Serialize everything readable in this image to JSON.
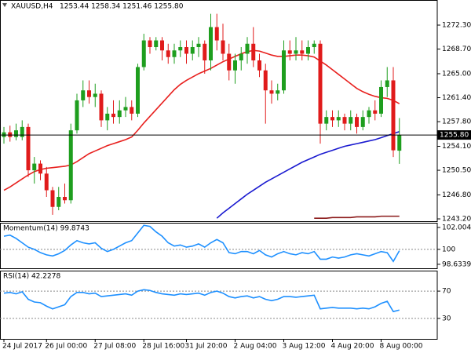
{
  "chart_data": [
    {
      "type": "candlestick",
      "title": "XAUUSD,H4",
      "subtitle": "1253.44 1258.34 1251.46 1255.80",
      "categories": [
        "24 Jul 2017",
        null,
        null,
        null,
        null,
        null,
        null,
        "26 Jul 00:00",
        null,
        null,
        null,
        null,
        null,
        null,
        null,
        "27 Jul 08:00",
        null,
        null,
        null,
        null,
        null,
        null,
        null,
        "28 Jul 16:00",
        null,
        null,
        null,
        null,
        null,
        null,
        "31 Jul 20:00",
        null,
        null,
        null,
        null,
        null,
        null,
        null,
        "2 Aug 04:00",
        null,
        null,
        null,
        null,
        null,
        null,
        null,
        "3 Aug 12:00",
        null,
        null,
        null,
        null,
        null,
        null,
        null,
        "4 Aug 20:00",
        null,
        null,
        null,
        null,
        null,
        null,
        null,
        "8 Aug 00:00",
        null,
        null,
        null
      ],
      "open": [
        1255.5,
        1256.2,
        1255.5,
        1255.5,
        1257,
        1250.5,
        1251.5,
        1250,
        1247.5,
        1245,
        1246.5,
        1246,
        1256.5,
        1261,
        1262.5,
        1261.5,
        1262,
        1258,
        1259,
        1258.5,
        1259.5,
        1260,
        1259,
        1266,
        1270,
        1269,
        1270,
        1268.5,
        1267.5,
        1268.5,
        1269,
        1268,
        1269,
        1269.5,
        1267,
        1272,
        1270,
        1268,
        1265.5,
        1267,
        1268,
        1269.5,
        1267,
        1265.5,
        1262.5,
        1262,
        1262.5,
        1268.5,
        1268,
        1268.5,
        1268,
        1269,
        1269.5,
        1257.5,
        1258.5,
        1258,
        1258.5,
        1257.5,
        1258.5,
        1257,
        1258.5,
        1259.5,
        1259,
        1263,
        1264,
        1253.44
      ],
      "high": [
        1257,
        1257.2,
        1257.5,
        1258,
        1257.5,
        1252.5,
        1252,
        1251,
        1248,
        1248,
        1248.5,
        1257.5,
        1262,
        1264,
        1264,
        1263.5,
        1262.5,
        1260,
        1261,
        1261,
        1261.5,
        1261,
        1266.5,
        1271,
        1270.5,
        1270.5,
        1270.5,
        1269.5,
        1269.5,
        1270,
        1270,
        1270,
        1270.5,
        1270,
        1274,
        1274,
        1272.5,
        1269.5,
        1268,
        1269,
        1270.5,
        1272,
        1268,
        1266.5,
        1264,
        1263.5,
        1270,
        1270,
        1270.5,
        1270,
        1270,
        1270,
        1270,
        1259.5,
        1259.5,
        1259.5,
        1259,
        1259.5,
        1259,
        1259.5,
        1260,
        1261,
        1264,
        1266,
        1266,
        1258.34
      ],
      "low": [
        1254.5,
        1254.8,
        1255,
        1255,
        1249.5,
        1248.5,
        1249,
        1246.5,
        1243.8,
        1244.5,
        1245.5,
        1245.5,
        1256,
        1260,
        1260.5,
        1260,
        1257,
        1256.5,
        1257.5,
        1257.5,
        1258.5,
        1258,
        1258.5,
        1265.5,
        1268,
        1268.5,
        1267,
        1266.5,
        1266.5,
        1267.5,
        1266.5,
        1267,
        1267.5,
        1265,
        1265.5,
        1268.5,
        1267,
        1264,
        1263.5,
        1265.5,
        1266.5,
        1266,
        1264.5,
        1257.5,
        1260.5,
        1261,
        1262,
        1267,
        1267,
        1267,
        1267,
        1268,
        1254.5,
        1256.5,
        1257,
        1257,
        1256.5,
        1256.5,
        1256,
        1256.5,
        1257.5,
        1258,
        1258.5,
        1261.5,
        1252.5,
        1251.46
      ],
      "close": [
        1256.2,
        1255.5,
        1256.5,
        1257,
        1250.5,
        1251.5,
        1250,
        1247.5,
        1245,
        1246.5,
        1246,
        1256.5,
        1261,
        1262.5,
        1261.5,
        1262,
        1258,
        1259,
        1258.5,
        1259.5,
        1260,
        1259,
        1266,
        1270,
        1269,
        1270,
        1268.5,
        1267.5,
        1268.5,
        1269,
        1268,
        1269,
        1269.5,
        1267,
        1272,
        1270,
        1268,
        1265.5,
        1267,
        1268,
        1269.5,
        1267,
        1265.5,
        1262.5,
        1262,
        1262.5,
        1268.5,
        1268,
        1268.5,
        1268,
        1269,
        1269.5,
        1257.5,
        1258.5,
        1258,
        1258.5,
        1257.5,
        1258.5,
        1257,
        1258.5,
        1259.5,
        1259,
        1263,
        1264,
        1253.5,
        1255.8
      ],
      "up_color": "#1e9e1e",
      "down_color": "#e01b1b",
      "series": [
        {
          "color": "#e8201e",
          "values": [
            1247.5,
            1248.0,
            1248.6,
            1249.2,
            1249.8,
            1250.3,
            1250.6,
            1250.8,
            1250.9,
            1251.0,
            1251.1,
            1251.3,
            1251.8,
            1252.4,
            1253.0,
            1253.4,
            1253.8,
            1254.2,
            1254.5,
            1254.8,
            1255.1,
            1255.5,
            1256.5,
            1257.6,
            1258.6,
            1259.6,
            1260.6,
            1261.6,
            1262.6,
            1263.4,
            1264.0,
            1264.5,
            1265.0,
            1265.4,
            1265.8,
            1266.3,
            1266.8,
            1267.2,
            1267.6,
            1268.0,
            1268.3,
            1268.5,
            1268.4,
            1268.1,
            1267.8,
            1267.6,
            1267.6,
            1267.7,
            1267.8,
            1267.8,
            1267.7,
            1267.5,
            1266.9,
            1266.3,
            1265.6,
            1264.9,
            1264.2,
            1263.5,
            1262.8,
            1262.3,
            1261.9,
            1261.6,
            1261.4,
            1261.3,
            1261.0,
            1260.5
          ]
        },
        {
          "color": "#1a1ad0",
          "values": [
            null,
            null,
            null,
            null,
            null,
            null,
            null,
            null,
            null,
            null,
            null,
            null,
            null,
            null,
            null,
            null,
            null,
            null,
            null,
            null,
            null,
            null,
            null,
            null,
            null,
            null,
            null,
            null,
            null,
            null,
            null,
            null,
            null,
            null,
            null,
            1243.3,
            1244.1,
            1244.8,
            1245.5,
            1246.2,
            1246.9,
            1247.5,
            1248.1,
            1248.7,
            1249.2,
            1249.7,
            1250.2,
            1250.7,
            1251.2,
            1251.7,
            1252.1,
            1252.5,
            1252.9,
            1253.2,
            1253.5,
            1253.8,
            1254.1,
            1254.3,
            1254.5,
            1254.7,
            1254.9,
            1255.1,
            1255.4,
            1255.7,
            1256.0,
            1256.3
          ]
        },
        {
          "color": "#8b1a1a",
          "values": [
            null,
            null,
            null,
            null,
            null,
            null,
            null,
            null,
            null,
            null,
            null,
            null,
            null,
            null,
            null,
            null,
            null,
            null,
            null,
            null,
            null,
            null,
            null,
            null,
            null,
            null,
            null,
            null,
            null,
            null,
            null,
            null,
            null,
            null,
            null,
            null,
            null,
            null,
            null,
            null,
            null,
            null,
            null,
            null,
            null,
            null,
            null,
            null,
            null,
            null,
            null,
            1243.3,
            1243.3,
            1243.3,
            1243.4,
            1243.4,
            1243.4,
            1243.4,
            1243.5,
            1243.5,
            1243.5,
            1243.5,
            1243.6,
            1243.6,
            1243.6,
            1243.6
          ]
        }
      ],
      "ylim": [
        1242.85,
        1276.07
      ],
      "yticks": [
        {
          "value": 1272.3,
          "label": "1272.30"
        },
        {
          "value": 1268.7,
          "label": "1268.70"
        },
        {
          "value": 1265,
          "label": "1265.00"
        },
        {
          "value": 1261.4,
          "label": "1261.40"
        },
        {
          "value": 1257.8,
          "label": "1257.80"
        },
        {
          "value": 1254.1,
          "label": "1254.10"
        },
        {
          "value": 1250.5,
          "label": "1250.50"
        },
        {
          "value": 1246.8,
          "label": "1246.80"
        },
        {
          "value": 1243.2,
          "label": "1243.20"
        }
      ],
      "last_price": {
        "value": 1255.8,
        "label": "1255.80"
      }
    },
    {
      "type": "line",
      "title": "Momentum(14) 99.8743",
      "color": "#1e90ff",
      "values": [
        101.2,
        101.3,
        101.0,
        100.6,
        100.2,
        100.0,
        99.7,
        99.5,
        99.4,
        99.6,
        99.9,
        100.4,
        100.8,
        100.6,
        100.5,
        100.6,
        100.1,
        99.8,
        100.0,
        100.3,
        100.6,
        100.8,
        101.5,
        102.2,
        102.1,
        101.6,
        101.2,
        100.6,
        100.3,
        100.4,
        100.2,
        100.3,
        100.5,
        100.2,
        100.6,
        100.9,
        100.6,
        99.7,
        99.6,
        99.8,
        99.8,
        99.6,
        99.9,
        99.5,
        99.3,
        99.6,
        99.8,
        99.6,
        99.5,
        99.7,
        99.6,
        99.8,
        99.1,
        99.1,
        99.3,
        99.2,
        99.3,
        99.5,
        99.6,
        99.5,
        99.4,
        99.6,
        99.8,
        99.7,
        98.9,
        99.8743
      ],
      "ylim": [
        98.27,
        102.43
      ],
      "yticks": [
        102.0041,
        100,
        98.6339
      ],
      "levels": [
        100
      ]
    },
    {
      "type": "line",
      "title": "RSI(14) 42.2278",
      "color": "#1e90ff",
      "values": [
        67,
        68,
        66,
        69,
        58,
        54,
        53,
        48,
        44,
        47,
        50,
        62,
        68,
        68,
        66,
        67,
        62,
        63,
        64,
        65,
        66,
        64,
        70,
        72,
        71,
        68,
        66,
        65,
        64,
        66,
        65,
        66,
        67,
        64,
        68,
        70,
        67,
        62,
        60,
        62,
        63,
        60,
        62,
        58,
        56,
        58,
        62,
        62,
        61,
        62,
        63,
        64,
        44,
        45,
        46,
        45,
        45,
        45,
        44,
        45,
        44,
        47,
        52,
        55,
        40,
        42.2278
      ],
      "ylim": [
        0,
        100
      ],
      "yticks": [
        70,
        30
      ],
      "levels": [
        70,
        30
      ]
    }
  ]
}
